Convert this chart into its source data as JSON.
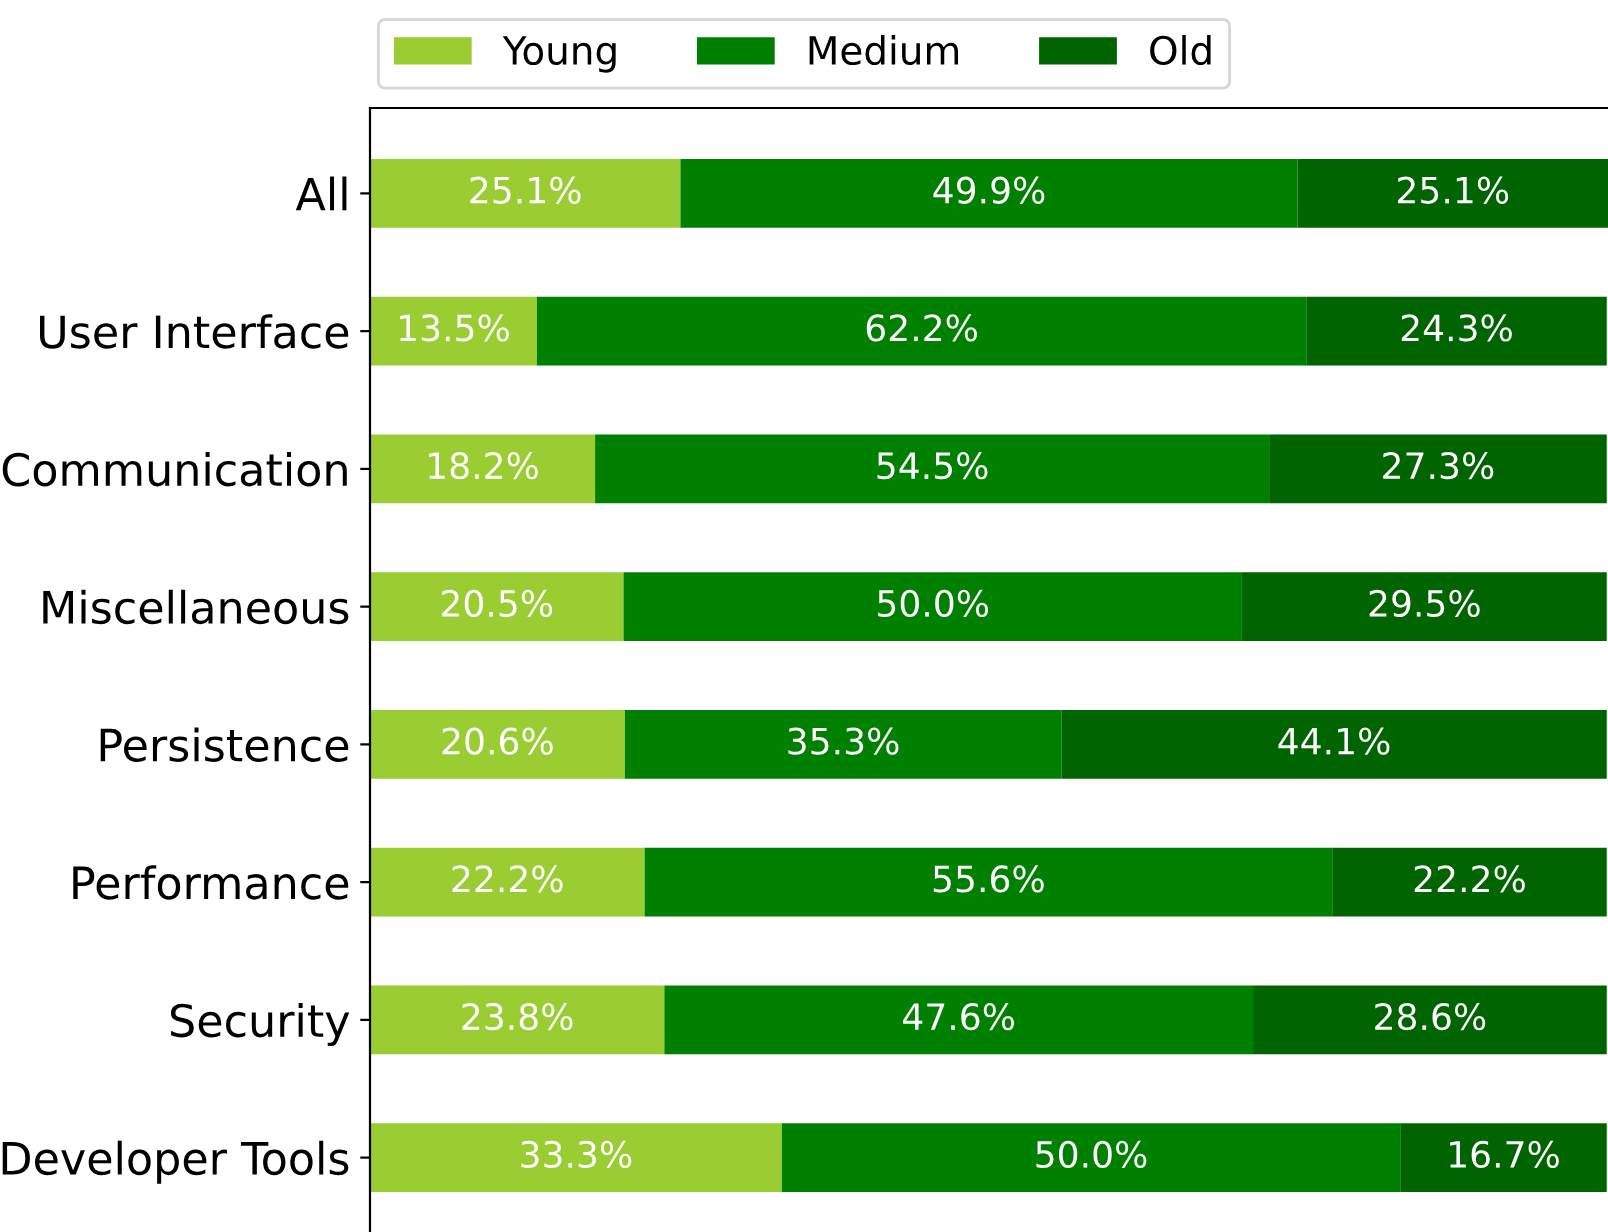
{
  "chart_data": {
    "type": "bar",
    "orientation": "horizontal",
    "stacked": true,
    "legend": "top",
    "tick_labels": "y",
    "grid": false,
    "categories": [
      "All",
      "User Interface",
      "Communication",
      "Miscellaneous",
      "Persistence",
      "Performance",
      "Security",
      "Developer Tools"
    ],
    "series": [
      {
        "name": "Young",
        "color": "#9acd32",
        "values": [
          25.1,
          13.5,
          18.2,
          20.5,
          20.6,
          22.2,
          23.8,
          33.3
        ],
        "value_labels": [
          "25.1%",
          "13.5%",
          "18.2%",
          "20.5%",
          "20.6%",
          "22.2%",
          "23.8%",
          "33.3%"
        ]
      },
      {
        "name": "Medium",
        "color": "#008000",
        "values": [
          49.9,
          62.2,
          54.5,
          50.0,
          35.3,
          55.6,
          47.6,
          50.0
        ],
        "value_labels": [
          "49.9%",
          "62.2%",
          "54.5%",
          "50.0%",
          "35.3%",
          "55.6%",
          "47.6%",
          "50.0%"
        ]
      },
      {
        "name": "Old",
        "color": "#006400",
        "values": [
          25.1,
          24.3,
          27.3,
          29.5,
          44.1,
          22.2,
          28.6,
          16.7
        ],
        "value_labels": [
          "25.1%",
          "24.3%",
          "27.3%",
          "29.5%",
          "44.1%",
          "22.2%",
          "28.6%",
          "16.7%"
        ]
      }
    ]
  }
}
